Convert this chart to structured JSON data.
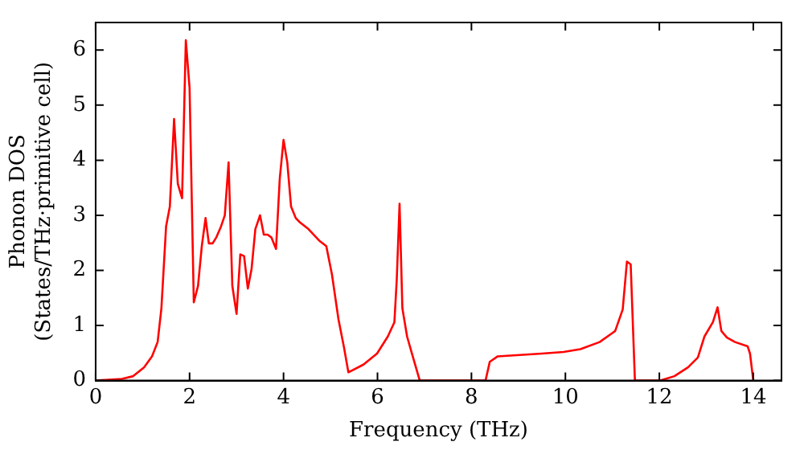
{
  "chart_data": {
    "type": "line",
    "xlabel": "Frequency (THz)",
    "ylabel": "Phonon DOS\n(States/THz·primitive cell)",
    "x": [
      0,
      0.56,
      0.8,
      1.03,
      1.2,
      1.32,
      1.4,
      1.5,
      1.58,
      1.67,
      1.75,
      1.84,
      1.92,
      2.0,
      2.09,
      2.18,
      2.26,
      2.34,
      2.41,
      2.49,
      2.57,
      2.67,
      2.75,
      2.83,
      2.91,
      3.0,
      3.08,
      3.16,
      3.24,
      3.32,
      3.4,
      3.5,
      3.58,
      3.66,
      3.74,
      3.84,
      3.92,
      4.0,
      4.08,
      4.16,
      4.26,
      4.35,
      4.53,
      4.76,
      4.91,
      5.03,
      5.17,
      5.29,
      5.38,
      5.7,
      5.99,
      6.22,
      6.36,
      6.41,
      6.47,
      6.53,
      6.63,
      6.75,
      6.9,
      8.3,
      8.39,
      8.56,
      9.5,
      9.96,
      10.32,
      10.73,
      11.06,
      11.22,
      11.31,
      11.39,
      11.48,
      12.02,
      12.32,
      12.61,
      12.82,
      12.96,
      13.14,
      13.24,
      13.32,
      13.44,
      13.61,
      13.88,
      13.93,
      14.0
    ],
    "series": [
      {
        "color": "#ff0000",
        "values": [
          0,
          0.03,
          0.08,
          0.24,
          0.44,
          0.7,
          1.31,
          2.8,
          3.16,
          4.75,
          3.57,
          3.31,
          6.18,
          5.31,
          1.42,
          1.72,
          2.44,
          2.95,
          2.49,
          2.49,
          2.6,
          2.8,
          3.0,
          3.96,
          1.72,
          1.21,
          2.29,
          2.26,
          1.67,
          2.03,
          2.75,
          3.0,
          2.65,
          2.65,
          2.6,
          2.39,
          3.67,
          4.37,
          3.96,
          3.16,
          2.95,
          2.87,
          2.75,
          2.54,
          2.44,
          1.93,
          1.11,
          0.59,
          0.15,
          0.29,
          0.49,
          0.8,
          1.06,
          1.83,
          3.21,
          1.31,
          0.8,
          0.44,
          0,
          0,
          0.34,
          0.44,
          0.49,
          0.52,
          0.57,
          0.7,
          0.9,
          1.29,
          2.16,
          2.11,
          0,
          0,
          0.08,
          0.24,
          0.42,
          0.8,
          1.06,
          1.33,
          0.9,
          0.78,
          0.7,
          0.62,
          0.49,
          0
        ]
      }
    ],
    "xlim": [
      0,
      14.6
    ],
    "ylim": [
      0,
      6.5
    ],
    "xticks": [
      0,
      2,
      4,
      6,
      8,
      10,
      12,
      14
    ],
    "yticks": [
      0,
      1,
      2,
      3,
      4,
      5,
      6
    ],
    "grid": false,
    "legend": false,
    "marker": "none",
    "line_style": "solid"
  }
}
